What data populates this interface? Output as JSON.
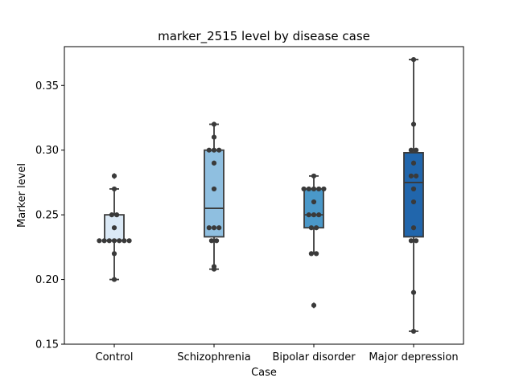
{
  "chart_data": {
    "type": "box",
    "title": "marker_2515 level by disease case",
    "xlabel": "Case",
    "ylabel": "Marker level",
    "ylim": [
      0.15,
      0.38
    ],
    "yticks": [
      0.15,
      0.2,
      0.25,
      0.3,
      0.35
    ],
    "ytick_labels": [
      "0.15",
      "0.20",
      "0.25",
      "0.30",
      "0.35"
    ],
    "grid": false,
    "categories": [
      "Control",
      "Schizophrenia",
      "Bipolar disorder",
      "Major depression"
    ],
    "colors": [
      "#dbe9f6",
      "#8fbfe0",
      "#4a98c9",
      "#2166ac"
    ],
    "groups": [
      {
        "name": "Control",
        "q1": 0.23,
        "median": 0.23,
        "q3": 0.25,
        "whisker_low": 0.2,
        "whisker_high": 0.27,
        "outliers": [
          0.28
        ],
        "points": [
          0.28,
          0.27,
          0.25,
          0.25,
          0.24,
          0.23,
          0.23,
          0.23,
          0.23,
          0.23,
          0.23,
          0.23,
          0.22,
          0.2
        ]
      },
      {
        "name": "Schizophrenia",
        "q1": 0.233,
        "median": 0.255,
        "q3": 0.3,
        "whisker_low": 0.208,
        "whisker_high": 0.32,
        "outliers": [],
        "points": [
          0.32,
          0.31,
          0.3,
          0.3,
          0.3,
          0.29,
          0.27,
          0.24,
          0.24,
          0.24,
          0.23,
          0.23,
          0.21,
          0.208
        ]
      },
      {
        "name": "Bipolar disorder",
        "q1": 0.24,
        "median": 0.25,
        "q3": 0.27,
        "whisker_low": 0.22,
        "whisker_high": 0.28,
        "outliers": [
          0.18
        ],
        "points": [
          0.28,
          0.27,
          0.27,
          0.27,
          0.27,
          0.27,
          0.26,
          0.25,
          0.25,
          0.25,
          0.24,
          0.24,
          0.22,
          0.22,
          0.18
        ]
      },
      {
        "name": "Major depression",
        "q1": 0.233,
        "median": 0.275,
        "q3": 0.298,
        "whisker_low": 0.16,
        "whisker_high": 0.37,
        "outliers": [],
        "points": [
          0.37,
          0.32,
          0.3,
          0.3,
          0.29,
          0.28,
          0.28,
          0.27,
          0.26,
          0.24,
          0.23,
          0.23,
          0.19,
          0.16
        ]
      }
    ]
  }
}
